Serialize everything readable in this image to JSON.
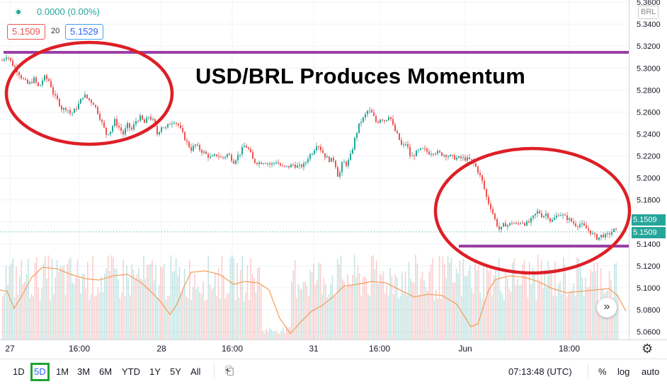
{
  "header": {
    "change": "0.0000 (0.00%)",
    "bid": "5.1509",
    "spread": "20",
    "ask": "5.1529"
  },
  "annotation_title": "USD/BRL Produces Momentum",
  "currency_label": "BRL",
  "last_price_tags": [
    "5.1509",
    "5.1509"
  ],
  "nav_symbol": "»",
  "bottom_bar": {
    "ranges": [
      "1D",
      "5D",
      "1M",
      "3M",
      "6M",
      "YTD",
      "1Y",
      "5Y",
      "All"
    ],
    "active_range": "5D",
    "clock": "07:13:48 (UTC)",
    "options": [
      "%",
      "log",
      "auto"
    ]
  },
  "colors": {
    "up": "#26a69a",
    "down": "#ef5350",
    "ma": "#f3a15f",
    "annotation_circle": "#dd1f26",
    "annotation_line": "#9b3fa6",
    "active_range_border": "#1ea533"
  },
  "chart_data": {
    "type": "candlestick",
    "x_tick_labels": [
      "27",
      "16:00",
      "28",
      "16:00",
      "31",
      "16:00",
      "Jun",
      "18:00"
    ],
    "y_tick_labels": [
      "5.3600",
      "5.3400",
      "5.3200",
      "5.3000",
      "5.2800",
      "5.2600",
      "5.2400",
      "5.2200",
      "5.2000",
      "5.1800",
      "5.1600",
      "5.1400",
      "5.1200",
      "5.1000",
      "5.0800",
      "5.0600"
    ],
    "ylim": [
      5.053,
      5.362
    ],
    "last_price": 5.1509,
    "price_path": [
      [
        0,
        5.305
      ],
      [
        10,
        5.312
      ],
      [
        18,
        5.303
      ],
      [
        24,
        5.298
      ],
      [
        32,
        5.29
      ],
      [
        40,
        5.285
      ],
      [
        48,
        5.29
      ],
      [
        55,
        5.282
      ],
      [
        62,
        5.292
      ],
      [
        70,
        5.288
      ],
      [
        76,
        5.275
      ],
      [
        82,
        5.27
      ],
      [
        88,
        5.262
      ],
      [
        94,
        5.264
      ],
      [
        100,
        5.258
      ],
      [
        106,
        5.262
      ],
      [
        112,
        5.268
      ],
      [
        118,
        5.276
      ],
      [
        124,
        5.272
      ],
      [
        132,
        5.268
      ],
      [
        138,
        5.26
      ],
      [
        144,
        5.25
      ],
      [
        150,
        5.24
      ],
      [
        156,
        5.243
      ],
      [
        162,
        5.252
      ],
      [
        168,
        5.246
      ],
      [
        174,
        5.24
      ],
      [
        180,
        5.248
      ],
      [
        186,
        5.244
      ],
      [
        192,
        5.252
      ],
      [
        198,
        5.255
      ],
      [
        204,
        5.25
      ],
      [
        210,
        5.256
      ],
      [
        216,
        5.252
      ],
      [
        222,
        5.24
      ],
      [
        228,
        5.247
      ],
      [
        234,
        5.245
      ],
      [
        240,
        5.25
      ],
      [
        246,
        5.252
      ],
      [
        252,
        5.248
      ],
      [
        258,
        5.24
      ],
      [
        264,
        5.232
      ],
      [
        270,
        5.226
      ],
      [
        276,
        5.23
      ],
      [
        282,
        5.226
      ],
      [
        290,
        5.222
      ],
      [
        298,
        5.218
      ],
      [
        306,
        5.221
      ],
      [
        314,
        5.218
      ],
      [
        322,
        5.222
      ],
      [
        330,
        5.215
      ],
      [
        338,
        5.222
      ],
      [
        346,
        5.23
      ],
      [
        352,
        5.225
      ],
      [
        358,
        5.215
      ],
      [
        366,
        5.214
      ],
      [
        374,
        5.215
      ],
      [
        382,
        5.212
      ],
      [
        390,
        5.215
      ],
      [
        398,
        5.21
      ],
      [
        406,
        5.21
      ],
      [
        414,
        5.212
      ],
      [
        422,
        5.21
      ],
      [
        430,
        5.212
      ],
      [
        436,
        5.22
      ],
      [
        442,
        5.224
      ],
      [
        448,
        5.232
      ],
      [
        454,
        5.225
      ],
      [
        460,
        5.219
      ],
      [
        466,
        5.216
      ],
      [
        472,
        5.217
      ],
      [
        478,
        5.2
      ],
      [
        484,
        5.215
      ],
      [
        490,
        5.212
      ],
      [
        496,
        5.222
      ],
      [
        502,
        5.238
      ],
      [
        508,
        5.25
      ],
      [
        514,
        5.255
      ],
      [
        520,
        5.262
      ],
      [
        526,
        5.258
      ],
      [
        532,
        5.25
      ],
      [
        538,
        5.255
      ],
      [
        544,
        5.252
      ],
      [
        550,
        5.258
      ],
      [
        556,
        5.245
      ],
      [
        562,
        5.238
      ],
      [
        568,
        5.228
      ],
      [
        574,
        5.232
      ],
      [
        580,
        5.218
      ],
      [
        586,
        5.222
      ],
      [
        592,
        5.225
      ],
      [
        598,
        5.226
      ],
      [
        606,
        5.223
      ],
      [
        614,
        5.224
      ],
      [
        622,
        5.222
      ],
      [
        630,
        5.221
      ],
      [
        638,
        5.219
      ],
      [
        646,
        5.218
      ],
      [
        652,
        5.218
      ],
      [
        660,
        5.217
      ],
      [
        666,
        5.216
      ],
      [
        672,
        5.21
      ],
      [
        676,
        5.205
      ],
      [
        682,
        5.195
      ],
      [
        688,
        5.18
      ],
      [
        694,
        5.172
      ],
      [
        700,
        5.16
      ],
      [
        706,
        5.152
      ],
      [
        712,
        5.158
      ],
      [
        718,
        5.157
      ],
      [
        724,
        5.16
      ],
      [
        730,
        5.157
      ],
      [
        736,
        5.161
      ],
      [
        742,
        5.158
      ],
      [
        748,
        5.16
      ],
      [
        754,
        5.165
      ],
      [
        760,
        5.17
      ],
      [
        766,
        5.165
      ],
      [
        772,
        5.168
      ],
      [
        778,
        5.16
      ],
      [
        784,
        5.164
      ],
      [
        790,
        5.168
      ],
      [
        796,
        5.165
      ],
      [
        802,
        5.163
      ],
      [
        808,
        5.16
      ],
      [
        814,
        5.157
      ],
      [
        820,
        5.158
      ],
      [
        826,
        5.155
      ],
      [
        832,
        5.152
      ],
      [
        838,
        5.148
      ],
      [
        844,
        5.145
      ],
      [
        850,
        5.148
      ],
      [
        856,
        5.147
      ],
      [
        862,
        5.15
      ],
      [
        868,
        5.153
      ],
      [
        872,
        5.151
      ]
    ]
  }
}
